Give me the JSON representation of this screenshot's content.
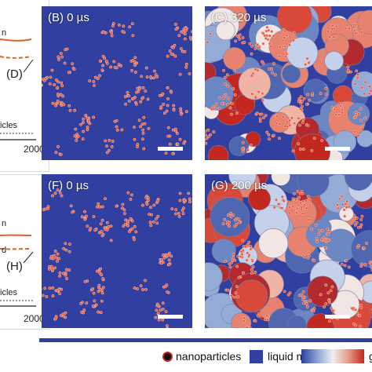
{
  "plots": [
    {
      "id": "top",
      "xtick": "2000",
      "labels": [
        "n",
        "(D)",
        "icles"
      ]
    },
    {
      "id": "bottom",
      "xtick": "2000",
      "labels": [
        "n",
        "d",
        "(H)",
        "icles"
      ]
    }
  ],
  "panels": {
    "B": {
      "label": "(B) 0 µs"
    },
    "C": {
      "label": "(C) 320 µs"
    },
    "F": {
      "label": "(F) 0 µs"
    },
    "G": {
      "label": "(G) 200 µs"
    }
  },
  "legend": {
    "nanoparticles": "nanoparticles",
    "liquid_melt": "liquid melt",
    "cut_label": "g"
  },
  "colors": {
    "melt_blue": "#303fa0",
    "particle_red": "#c2281f",
    "plot_orange": "#d9642a"
  }
}
